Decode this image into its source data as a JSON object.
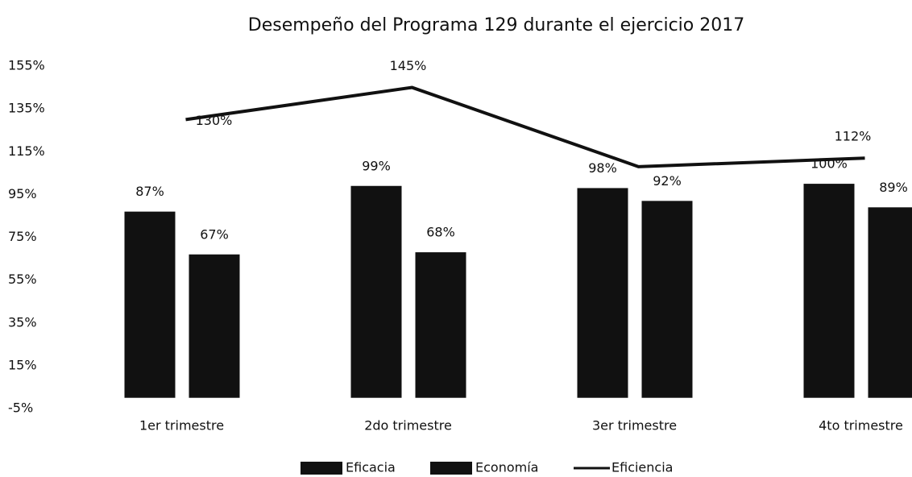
{
  "chart_data": {
    "type": "bar_line",
    "title": "Desempeño del Programa 129 durante el ejercicio 2017",
    "categories": [
      "1er trimestre",
      "2do trimestre",
      "3er trimestre",
      "4to trimestre"
    ],
    "series": [
      {
        "name": "Eficacia",
        "type": "bar",
        "color": "#111111",
        "values": [
          87,
          99,
          98,
          100
        ],
        "value_labels": [
          "87%",
          "99%",
          "98%",
          "100%"
        ]
      },
      {
        "name": "Economía",
        "type": "bar",
        "color": "#111111",
        "values": [
          67,
          68,
          92,
          89
        ],
        "value_labels": [
          "67%",
          "68%",
          "92%",
          "89%"
        ]
      },
      {
        "name": "Eficiencia",
        "type": "line",
        "color": "#111111",
        "values": [
          130,
          145,
          108,
          112
        ],
        "value_labels": [
          "130%",
          "145%",
          null,
          "112%"
        ]
      }
    ],
    "ylim": [
      -5,
      155
    ],
    "yticks": [
      {
        "value": -5,
        "label": "-5%"
      },
      {
        "value": 15,
        "label": "15%"
      },
      {
        "value": 35,
        "label": "35%"
      },
      {
        "value": 55,
        "label": "55%"
      },
      {
        "value": 75,
        "label": "75%"
      },
      {
        "value": 95,
        "label": "95%"
      },
      {
        "value": 115,
        "label": "115%"
      },
      {
        "value": 135,
        "label": "135%"
      },
      {
        "value": 155,
        "label": "155%"
      }
    ],
    "grid": false,
    "legend": "bottom"
  }
}
